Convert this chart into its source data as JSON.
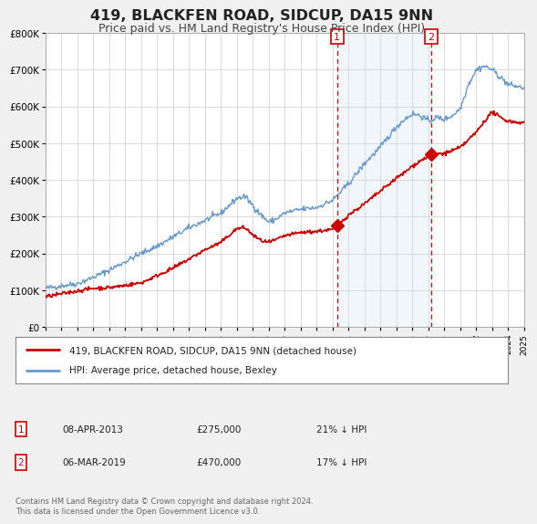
{
  "title": "419, BLACKFEN ROAD, SIDCUP, DA15 9NN",
  "subtitle": "Price paid vs. HM Land Registry's House Price Index (HPI)",
  "title_fontsize": 11.5,
  "subtitle_fontsize": 9,
  "legend_label_red": "419, BLACKFEN ROAD, SIDCUP, DA15 9NN (detached house)",
  "legend_label_blue": "HPI: Average price, detached house, Bexley",
  "annotation1_label": "1",
  "annotation1_date": "08-APR-2013",
  "annotation1_price": "£275,000",
  "annotation1_pct": "21% ↓ HPI",
  "annotation2_label": "2",
  "annotation2_date": "06-MAR-2019",
  "annotation2_price": "£470,000",
  "annotation2_pct": "17% ↓ HPI",
  "footnote": "Contains HM Land Registry data © Crown copyright and database right 2024.\nThis data is licensed under the Open Government Licence v3.0.",
  "xmin": 1995,
  "xmax": 2025,
  "ymin": 0,
  "ymax": 800000,
  "yticks": [
    0,
    100000,
    200000,
    300000,
    400000,
    500000,
    600000,
    700000,
    800000
  ],
  "ytick_labels": [
    "£0",
    "£100K",
    "£200K",
    "£300K",
    "£400K",
    "£500K",
    "£600K",
    "£700K",
    "£800K"
  ],
  "color_red": "#cc0000",
  "color_blue": "#6699cc",
  "color_span": "#ddeeff",
  "vline1_x": 2013.27,
  "vline2_x": 2019.17,
  "marker1_x": 2013.27,
  "marker1_y": 275000,
  "marker2_x": 2019.17,
  "marker2_y": 470000,
  "bg_color": "#f0f0f0",
  "plot_bg_color": "#ffffff"
}
